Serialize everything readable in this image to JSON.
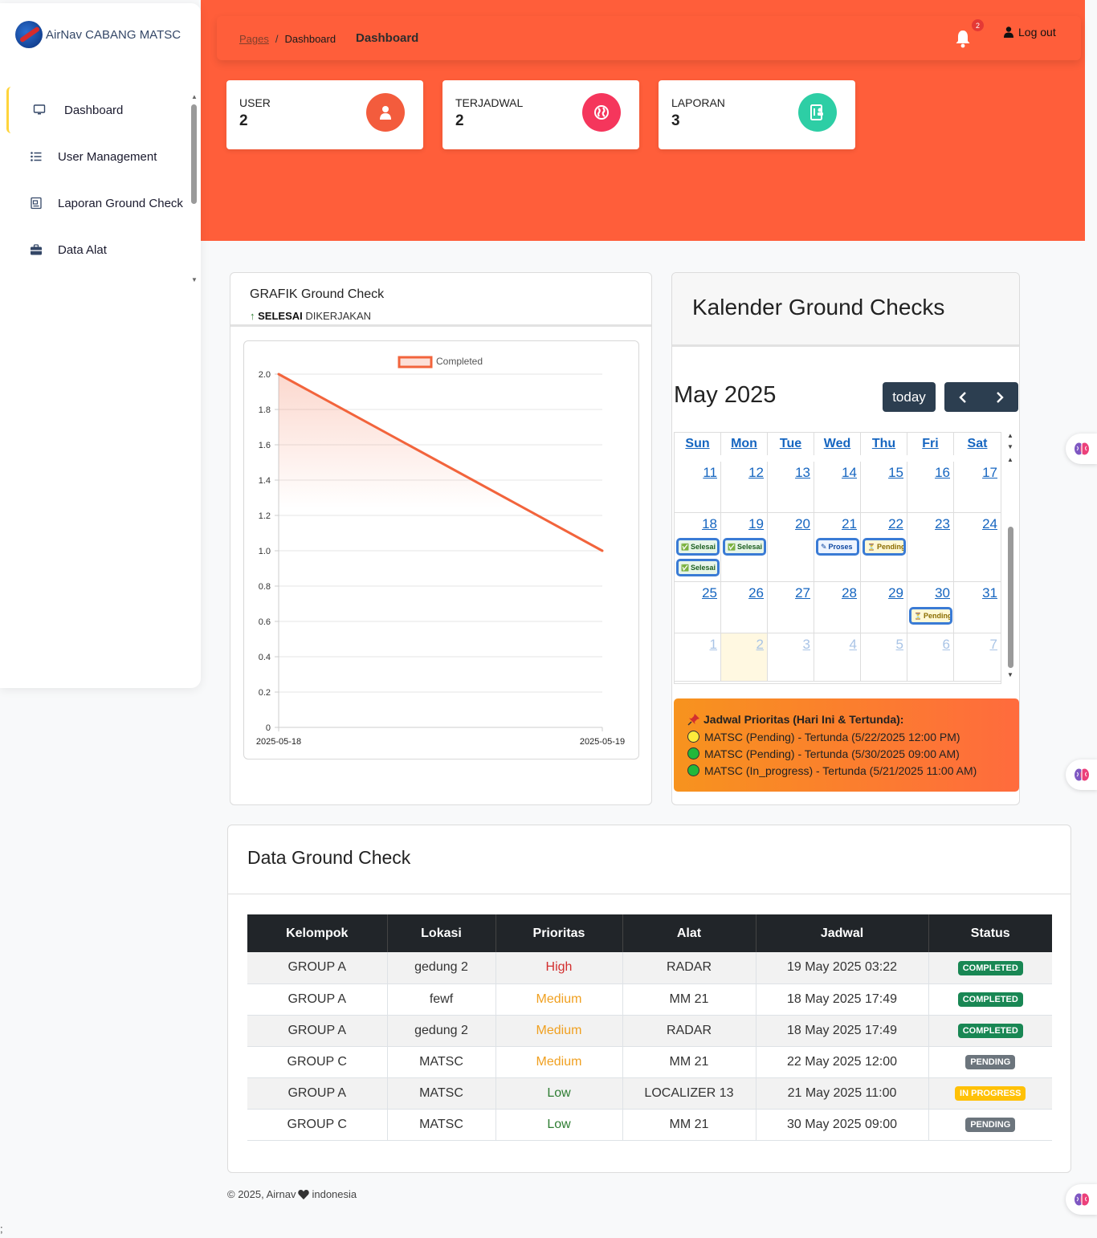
{
  "brand": {
    "name": "AirNav CABANG MATSC"
  },
  "sidebar": {
    "items": [
      {
        "label": "Dashboard",
        "icon": "monitor-icon"
      },
      {
        "label": "User Management",
        "icon": "list-icon"
      },
      {
        "label": "Laporan Ground Check",
        "icon": "report-icon"
      },
      {
        "label": "Data Alat",
        "icon": "briefcase-icon"
      }
    ]
  },
  "navbar": {
    "breadcrumb_root": "Pages",
    "breadcrumb_separator": "/",
    "breadcrumb_current": "Dashboard",
    "page_title": "Dashboard",
    "notification_count": "2",
    "logout_label": "Log out"
  },
  "stats": [
    {
      "label": "USER",
      "value": "2",
      "color": "#f35c3d"
    },
    {
      "label": "TERJADWAL",
      "value": "2",
      "color": "#f5365c"
    },
    {
      "label": "LAPORAN",
      "value": "3",
      "color": "#2dcea5"
    }
  ],
  "chart_card": {
    "title": "GRAFIK Ground Check",
    "subtitle_bold": "SELESAI",
    "subtitle_rest": "DIKERJAKAN"
  },
  "chart_data": {
    "type": "line",
    "x": [
      "2025-05-18",
      "2025-05-19"
    ],
    "series": [
      {
        "name": "Completed",
        "values": [
          2,
          1
        ],
        "color": "#f2643c"
      }
    ],
    "ylim": [
      0,
      2
    ],
    "yticks": [
      "0",
      "0.2",
      "0.4",
      "0.6",
      "0.8",
      "1.0",
      "1.2",
      "1.4",
      "1.6",
      "1.8",
      "2.0"
    ],
    "legend": "top",
    "grid": true,
    "filled": true
  },
  "calendar": {
    "header": "Kalender Ground Checks",
    "month_label": "May 2025",
    "today_label": "today",
    "weekdays": [
      "Sun",
      "Mon",
      "Tue",
      "Wed",
      "Thu",
      "Fri",
      "Sat"
    ],
    "weeks": [
      [
        "11",
        "12",
        "13",
        "14",
        "15",
        "16",
        "17"
      ],
      [
        "18",
        "19",
        "20",
        "21",
        "22",
        "23",
        "24"
      ],
      [
        "25",
        "26",
        "27",
        "28",
        "29",
        "30",
        "31"
      ],
      [
        "1",
        "2",
        "3",
        "4",
        "5",
        "6",
        "7"
      ]
    ],
    "events": {
      "sun18a": "Selesai",
      "sun18b": "Selesai",
      "mon19": "Selesai",
      "wed21": "Proses",
      "thu22": "Pending",
      "fri30": "Pending"
    }
  },
  "priority": {
    "title": "Jadwal Prioritas (Hari Ini & Tertunda):",
    "items": [
      {
        "text": "MATSC (Pending) - Tertunda (5/22/2025 12:00 PM)",
        "color": "#ffeb3b"
      },
      {
        "text": "MATSC (Pending) - Tertunda (5/30/2025 09:00 AM)",
        "color": "#22b83a"
      },
      {
        "text": "MATSC (In_progress) - Tertunda (5/21/2025 11:00 AM)",
        "color": "#22b83a"
      }
    ]
  },
  "table": {
    "title": "Data Ground Check",
    "headers": [
      "Kelompok",
      "Lokasi",
      "Prioritas",
      "Alat",
      "Jadwal",
      "Status"
    ],
    "rows": [
      [
        "GROUP A",
        "gedung 2",
        "High",
        "RADAR",
        "19 May 2025 03:22",
        "COMPLETED"
      ],
      [
        "GROUP A",
        "fewf",
        "Medium",
        "MM 21",
        "18 May 2025 17:49",
        "COMPLETED"
      ],
      [
        "GROUP A",
        "gedung 2",
        "Medium",
        "RADAR",
        "18 May 2025 17:49",
        "COMPLETED"
      ],
      [
        "GROUP C",
        "MATSC",
        "Medium",
        "MM 21",
        "22 May 2025 12:00",
        "PENDING"
      ],
      [
        "GROUP A",
        "MATSC",
        "Low",
        "LOCALIZER 13",
        "21 May 2025 11:00",
        "IN PROGRESS"
      ],
      [
        "GROUP C",
        "MATSC",
        "Low",
        "MM 21",
        "30 May 2025 09:00",
        "PENDING"
      ]
    ]
  },
  "footer": {
    "prefix": "© 2025, Airnav",
    "suffix": "indonesia"
  },
  "stray_text": ";"
}
